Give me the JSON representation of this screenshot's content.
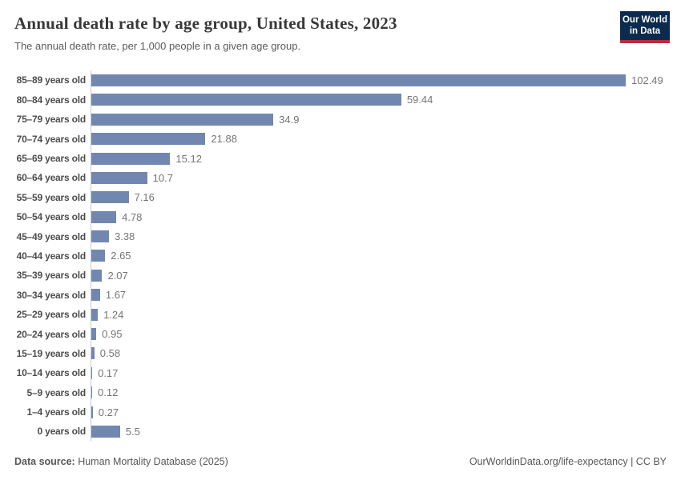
{
  "header": {
    "title": "Annual death rate by age group, United States, 2023",
    "subtitle": "The annual death rate, per 1,000 people in a given age group.",
    "logo": {
      "line1": "Our World",
      "line2": "in Data"
    }
  },
  "chart_data": {
    "type": "bar",
    "orientation": "horizontal",
    "title": "Annual death rate by age group, United States, 2023",
    "xlabel": "",
    "ylabel": "",
    "xlim": [
      0,
      102.49
    ],
    "grid": false,
    "legend": "none",
    "bar_color": "#7287b0",
    "categories": [
      "85–89 years old",
      "80–84 years old",
      "75–79 years old",
      "70–74 years old",
      "65–69 years old",
      "60–64 years old",
      "55–59 years old",
      "50–54 years old",
      "45–49 years old",
      "40–44 years old",
      "35–39 years old",
      "30–34 years old",
      "25–29 years old",
      "20–24 years old",
      "15–19 years old",
      "10–14 years old",
      "5–9 years old",
      "1–4 years old",
      "0 years old"
    ],
    "values": [
      102.49,
      59.44,
      34.9,
      21.88,
      15.12,
      10.7,
      7.16,
      4.78,
      3.38,
      2.65,
      2.07,
      1.67,
      1.24,
      0.95,
      0.58,
      0.17,
      0.12,
      0.27,
      5.5
    ],
    "value_labels": [
      "102.49",
      "59.44",
      "34.9",
      "21.88",
      "15.12",
      "10.7",
      "7.16",
      "4.78",
      "3.38",
      "2.65",
      "2.07",
      "1.67",
      "1.24",
      "0.95",
      "0.58",
      "0.17",
      "0.12",
      "0.27",
      "5.5"
    ]
  },
  "footer": {
    "source_label": "Data source:",
    "source_text": " Human Mortality Database (2025)",
    "right_text": "OurWorldinData.org/life-expectancy | CC BY"
  },
  "colors": {
    "bar": "#7287b0",
    "axis_line": "#c9c9c9",
    "logo_bg": "#0c2a4e",
    "logo_underline": "#b62e3e"
  }
}
